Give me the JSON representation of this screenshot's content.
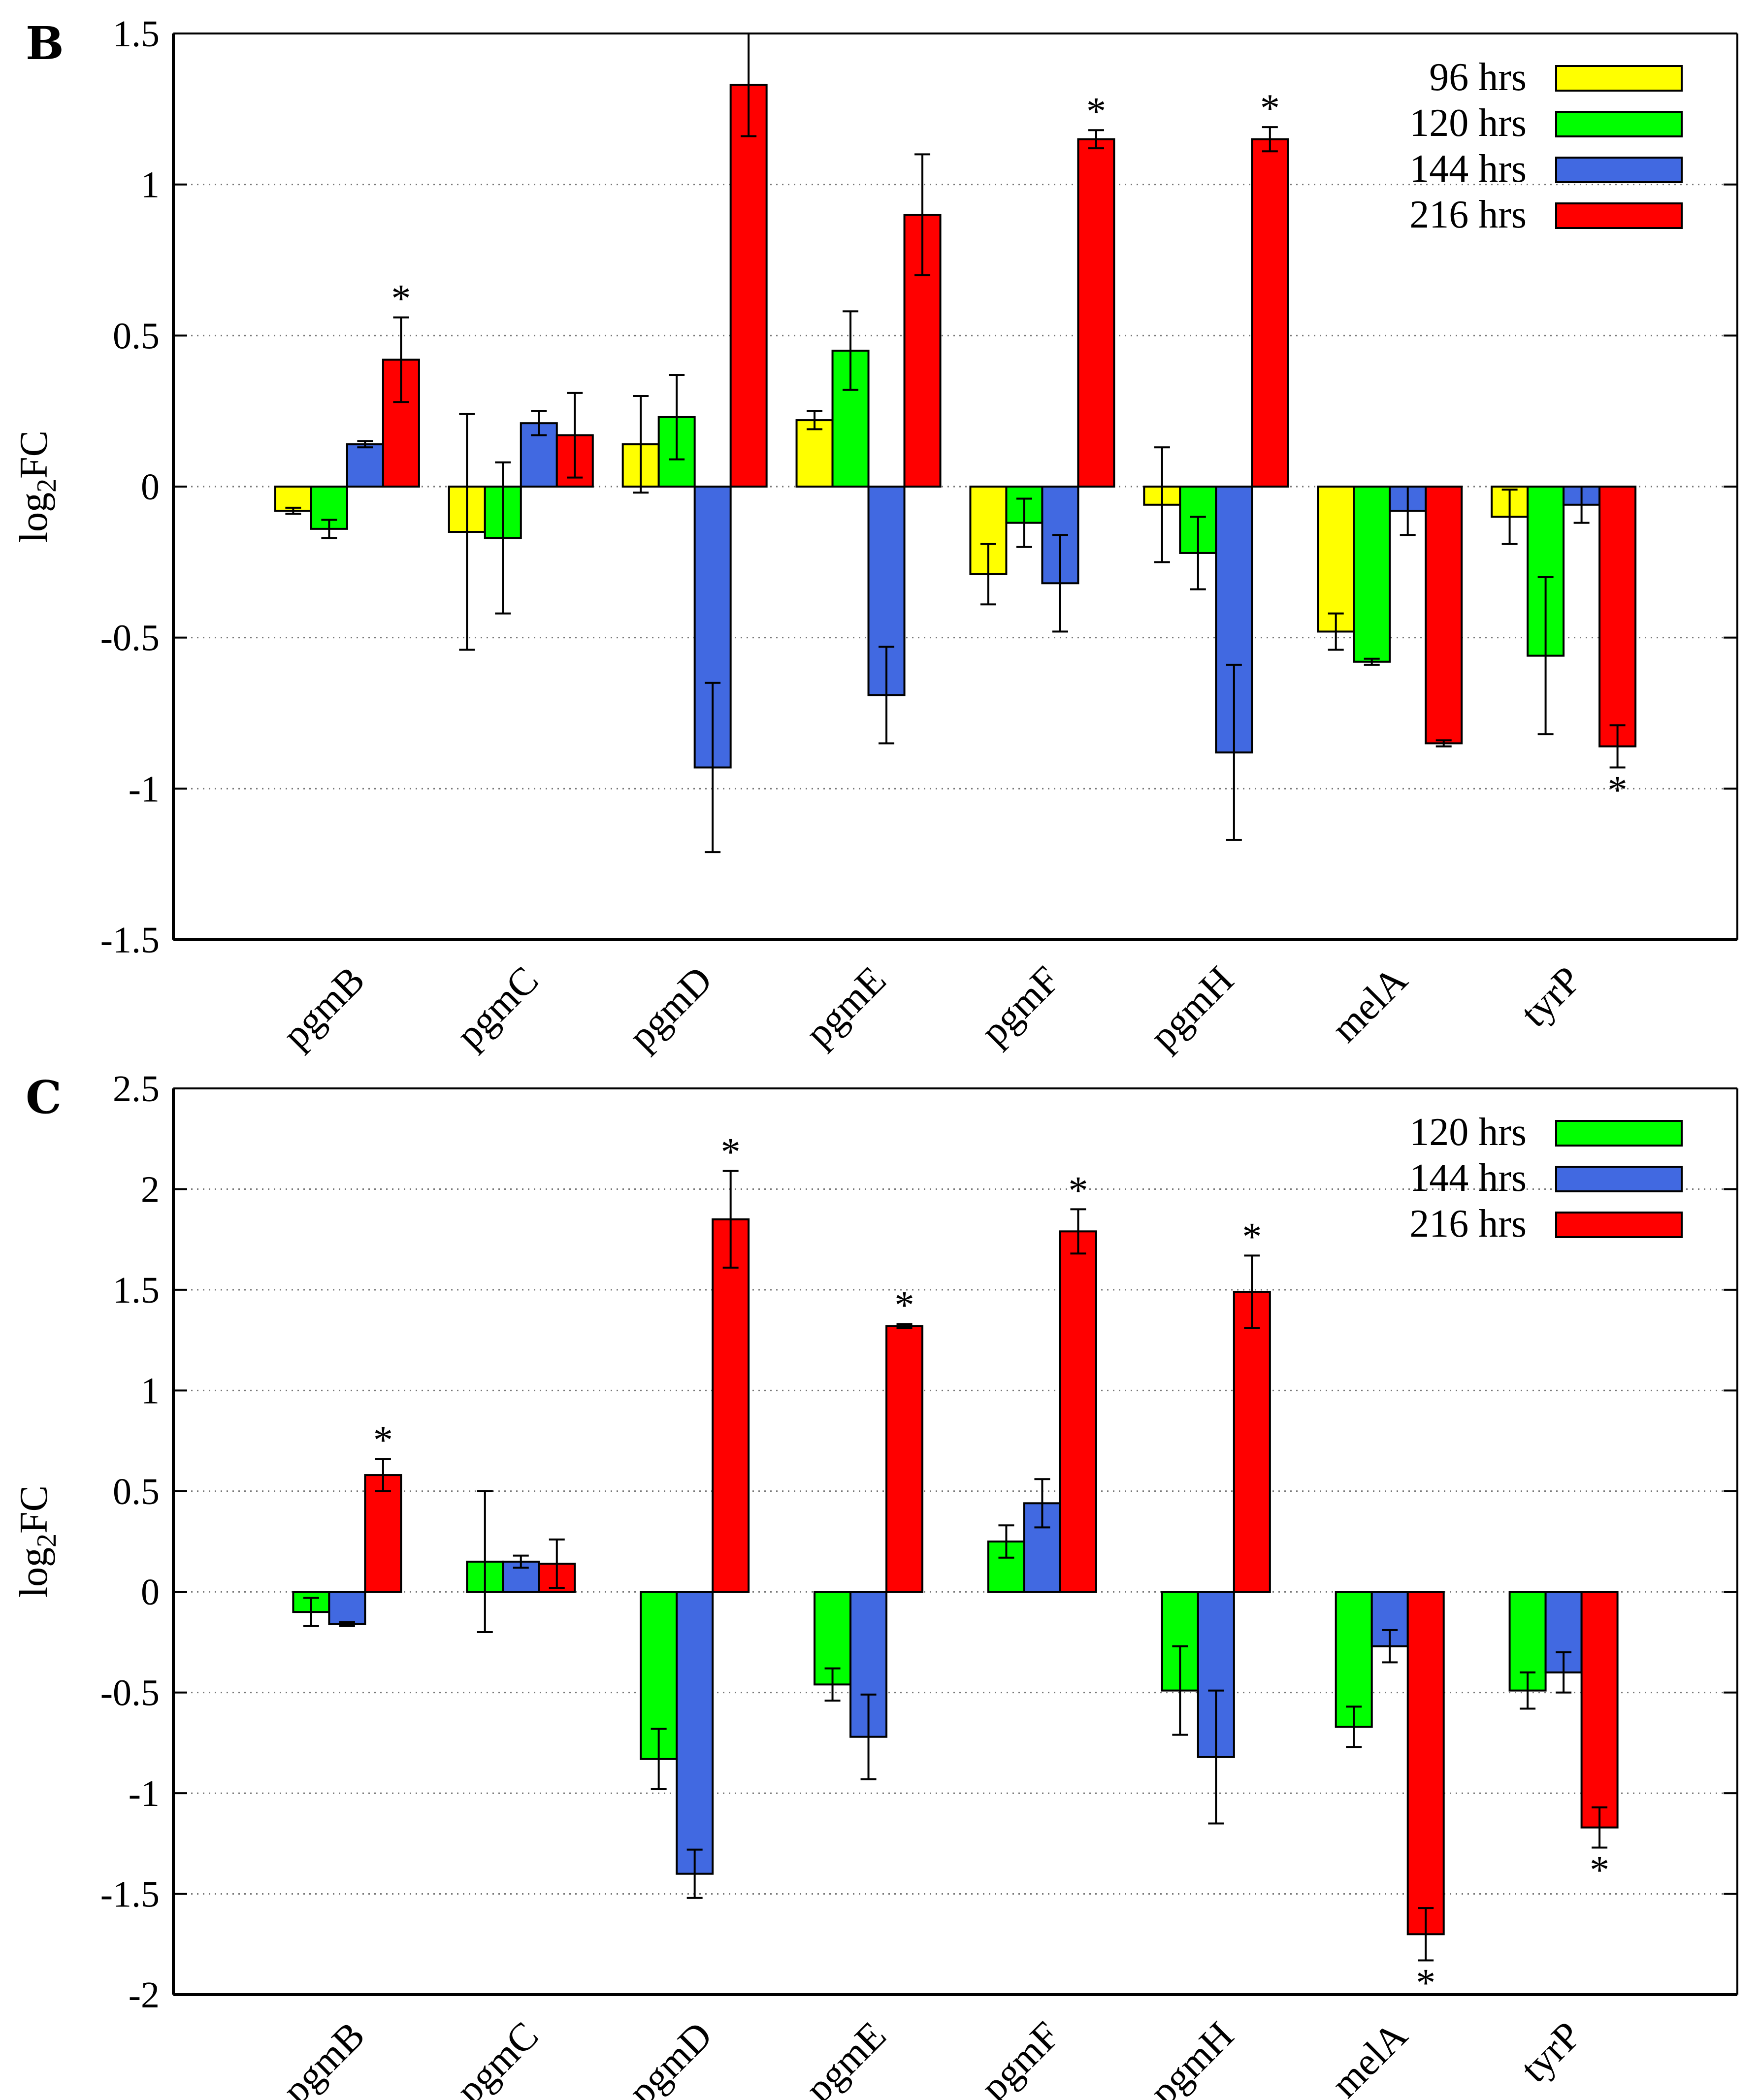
{
  "chart_data": [
    {
      "type": "bar",
      "panel": "B",
      "ylabel": "log2FC",
      "ylim": [
        -1.5,
        1.5
      ],
      "yticks": [
        1.5,
        1,
        0.5,
        0,
        -0.5,
        -1,
        -1.5
      ],
      "ytick_labels": [
        "1.5",
        "1",
        "0.5",
        "0",
        "-0.5",
        "-1",
        "-1.5"
      ],
      "categories": [
        "pgmB",
        "pgmC",
        "pgmD",
        "pgmE",
        "pgmF",
        "pgmH",
        "melA",
        "tyrP"
      ],
      "grid": true,
      "legend_position": "top-right",
      "series": [
        {
          "name": "96 hrs",
          "color": "#ffff00",
          "values": [
            -0.08,
            -0.15,
            0.14,
            0.22,
            -0.29,
            -0.06,
            -0.48,
            -0.1
          ],
          "errors": [
            0.01,
            0.39,
            0.16,
            0.03,
            0.1,
            0.19,
            0.06,
            0.09
          ]
        },
        {
          "name": "120 hrs",
          "color": "#00ff00",
          "values": [
            -0.14,
            -0.17,
            0.23,
            0.45,
            -0.12,
            -0.22,
            -0.58,
            -0.56
          ],
          "errors": [
            0.03,
            0.25,
            0.14,
            0.13,
            0.08,
            0.12,
            0.01,
            0.26
          ]
        },
        {
          "name": "144 hrs",
          "color": "#4169e1",
          "values": [
            0.14,
            0.21,
            -0.93,
            -0.69,
            -0.32,
            -0.88,
            -0.08,
            -0.06
          ],
          "errors": [
            0.01,
            0.04,
            0.28,
            0.16,
            0.16,
            0.29,
            0.08,
            0.06
          ]
        },
        {
          "name": "216 hrs",
          "color": "#ff0000",
          "values": [
            0.42,
            0.17,
            1.33,
            0.9,
            1.15,
            1.15,
            -0.85,
            -0.86
          ],
          "errors": [
            0.14,
            0.14,
            0.17,
            0.2,
            0.03,
            0.04,
            0.01,
            0.07
          ]
        }
      ],
      "significance": [
        {
          "category": "pgmB",
          "series": "216 hrs",
          "mark": "*"
        },
        {
          "category": "pgmF",
          "series": "216 hrs",
          "mark": "*"
        },
        {
          "category": "pgmH",
          "series": "216 hrs",
          "mark": "*"
        },
        {
          "category": "tyrP",
          "series": "216 hrs",
          "mark": "*"
        }
      ]
    },
    {
      "type": "bar",
      "panel": "C",
      "ylabel": "log2FC",
      "ylim": [
        -2,
        2.5
      ],
      "yticks": [
        2.5,
        2,
        1.5,
        1,
        0.5,
        0,
        -0.5,
        -1,
        -1.5,
        -2
      ],
      "ytick_labels": [
        "2.5",
        "2",
        "1.5",
        "1",
        "0.5",
        "0",
        "-0.5",
        "-1",
        "-1.5",
        "-2"
      ],
      "categories": [
        "pgmB",
        "pgmC",
        "pgmD",
        "pgmE",
        "pgmF",
        "pgmH",
        "melA",
        "tyrP"
      ],
      "grid": true,
      "legend_position": "top-right",
      "series": [
        {
          "name": "120 hrs",
          "color": "#00ff00",
          "values": [
            -0.1,
            0.15,
            -0.83,
            -0.46,
            0.25,
            -0.49,
            -0.67,
            -0.49
          ],
          "errors": [
            0.07,
            0.35,
            0.15,
            0.08,
            0.08,
            0.22,
            0.1,
            0.09
          ]
        },
        {
          "name": "144 hrs",
          "color": "#4169e1",
          "values": [
            -0.16,
            0.15,
            -1.4,
            -0.72,
            0.44,
            -0.82,
            -0.27,
            -0.4
          ],
          "errors": [
            0.01,
            0.03,
            0.12,
            0.21,
            0.12,
            0.33,
            0.08,
            0.1
          ]
        },
        {
          "name": "216 hrs",
          "color": "#ff0000",
          "values": [
            0.58,
            0.14,
            1.85,
            1.32,
            1.79,
            1.49,
            -1.7,
            -1.17
          ],
          "errors": [
            0.08,
            0.12,
            0.24,
            0.01,
            0.11,
            0.18,
            0.13,
            0.1
          ]
        }
      ],
      "significance": [
        {
          "category": "pgmB",
          "series": "216 hrs",
          "mark": "*"
        },
        {
          "category": "pgmD",
          "series": "216 hrs",
          "mark": "*"
        },
        {
          "category": "pgmE",
          "series": "216 hrs",
          "mark": "*"
        },
        {
          "category": "pgmF",
          "series": "216 hrs",
          "mark": "*"
        },
        {
          "category": "pgmH",
          "series": "216 hrs",
          "mark": "*"
        },
        {
          "category": "melA",
          "series": "216 hrs",
          "mark": "*"
        },
        {
          "category": "tyrP",
          "series": "216 hrs",
          "mark": "*"
        }
      ]
    }
  ]
}
